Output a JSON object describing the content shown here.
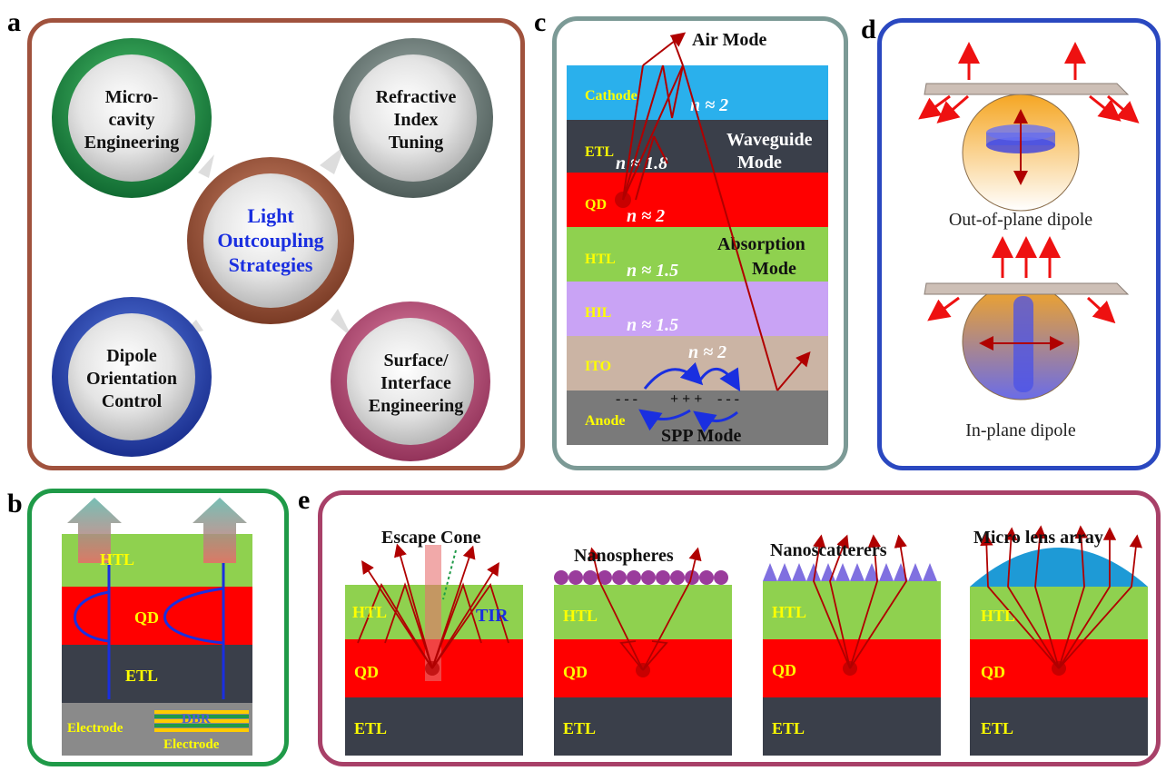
{
  "panels": {
    "a": {
      "letter": "a",
      "center": [
        "Light",
        "Outcoupling",
        "Strategies"
      ],
      "top_left": [
        "Micro-",
        "cavity",
        "Engineering"
      ],
      "top_right": [
        "Refractive",
        "Index",
        "Tuning"
      ],
      "bottom_left": [
        "Dipole",
        "Orientation",
        "Control"
      ],
      "bottom_right": [
        "Surface/",
        "Interface",
        "Engineering"
      ]
    },
    "b": {
      "letter": "b",
      "layers": {
        "htl": "HTL",
        "qd": "QD",
        "etl": "ETL",
        "electrode_left": "Electrode",
        "dbr": "DBR",
        "electrode_right": "Electrode"
      }
    },
    "c": {
      "letter": "c",
      "air_mode": "Air Mode",
      "waveguide_mode": [
        "Waveguide",
        "Mode"
      ],
      "absorption_mode": [
        "Absorption",
        "Mode"
      ],
      "spp_mode": "SPP Mode",
      "charges_left": "- - -",
      "charges_mid": "+ + +",
      "charges_right": "- - -",
      "layers": [
        {
          "name": "Cathode",
          "index": "n ≈ 2",
          "color": "#2ab0ec"
        },
        {
          "name": "ETL",
          "index": "n ≈ 1.8",
          "color": "#3a3f4a"
        },
        {
          "name": "QD",
          "index": "n ≈ 2",
          "color": "#ff0000"
        },
        {
          "name": "HTL",
          "index": "n ≈ 1.5",
          "color": "#8fd14f"
        },
        {
          "name": "HIL",
          "index": "n ≈ 1.5",
          "color": "#c9a3f5"
        },
        {
          "name": "ITO",
          "index": "n ≈ 2",
          "color": "#cbb4a4"
        },
        {
          "name": "Anode",
          "index": "",
          "color": "#7a7a7a"
        }
      ]
    },
    "d": {
      "letter": "d",
      "top_caption": "Out-of-plane dipole",
      "bottom_caption": "In-plane dipole"
    },
    "e": {
      "letter": "e",
      "sub": [
        {
          "title": "Escape Cone",
          "tir": "TIR",
          "htl": "HTL",
          "qd": "QD",
          "etl": "ETL"
        },
        {
          "title": "Nanospheres",
          "htl": "HTL",
          "qd": "QD",
          "etl": "ETL"
        },
        {
          "title": "Nanoscatterers",
          "htl": "HTL",
          "qd": "QD",
          "etl": "ETL"
        },
        {
          "title": "Micro lens array",
          "htl": "HTL",
          "qd": "QD",
          "etl": "ETL"
        }
      ]
    }
  },
  "colors": {
    "htl": "#8fd14f",
    "qd": "#ff0000",
    "etl": "#3a3f4a",
    "label_yellow": "#ffff00",
    "ray": "#b00000",
    "border_a": "#a0523d",
    "border_b": "#1f9a48",
    "border_c": "#7c9a96",
    "border_d": "#2a48c0",
    "border_e": "#a84068"
  }
}
